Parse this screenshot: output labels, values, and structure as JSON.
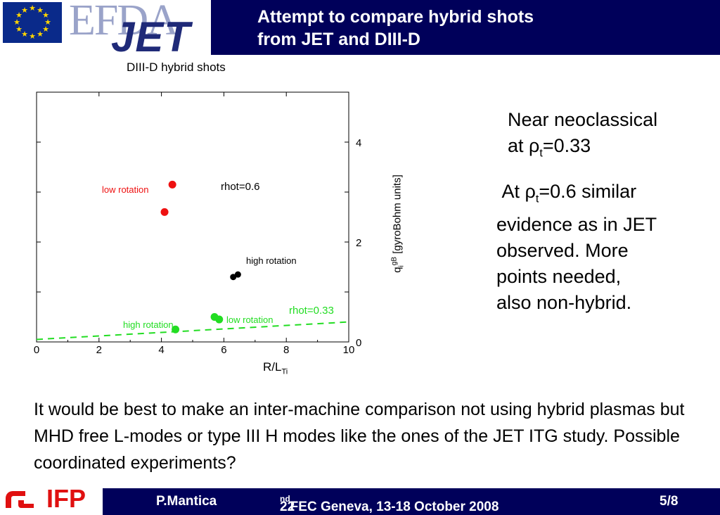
{
  "header": {
    "logo_efda": "EFDA",
    "logo_jet": "JET",
    "title_line1": "Attempt to compare hybrid shots",
    "title_line2": "from JET and DIII-D",
    "colors": {
      "header_bg": "#00005a",
      "flag_bg": "#0a2a8a",
      "star": "#ffd500"
    }
  },
  "chart": {
    "title": "DIII-D  hybrid shots",
    "ylabel_main": "q",
    "ylabel_sup": "gB",
    "ylabel_sub": "i",
    "ylabel_units": " [gyroBohm units]",
    "xlabel_main": "R/L",
    "xlabel_sub": "Ti",
    "xticks": [
      "0",
      "2",
      "4",
      "6",
      "8",
      "10"
    ],
    "yticks": [
      "0",
      "2",
      "4"
    ],
    "annotations": {
      "low_rotation_red": "low rotation",
      "rhot_06": "rhot=0.6",
      "high_rotation_black": "high rotation",
      "rhot_033": "rhot=0.33",
      "high_rotation_green": "high rotation",
      "low_rotation_green": "low rotation"
    }
  },
  "chart_data": {
    "type": "scatter",
    "title": "DIII-D  hybrid shots",
    "xlabel": "R/LTi",
    "ylabel": "qi gB [gyroBohm units]",
    "xlim": [
      0,
      10
    ],
    "ylim": [
      0,
      5
    ],
    "grid": false,
    "series": [
      {
        "group": "rhot=0.6 low rotation",
        "color": "#ee1111",
        "points": [
          [
            4.35,
            3.15
          ],
          [
            4.1,
            2.6
          ]
        ]
      },
      {
        "group": "rhot=0.6 high rotation",
        "color": "#000000",
        "points": [
          [
            6.3,
            1.3
          ],
          [
            6.45,
            1.35
          ]
        ]
      },
      {
        "group": "rhot=0.33 low rotation",
        "color": "#22dd22",
        "points": [
          [
            5.7,
            0.5
          ],
          [
            5.85,
            0.45
          ]
        ]
      },
      {
        "group": "rhot=0.33 high rotation",
        "color": "#22dd22",
        "points": [
          [
            4.45,
            0.25
          ]
        ]
      }
    ],
    "dashed_line": {
      "color": "#22dd22",
      "points": [
        [
          0,
          0.05
        ],
        [
          10,
          0.4
        ]
      ]
    }
  },
  "side": {
    "text1_line1": "Near neoclassical",
    "text1_prefix": "at ",
    "rho": "ρ",
    "rho_sub": "t",
    "text1_value": "=0.33",
    "text2_prefix": "At ",
    "text2_value": "=0.6 similar",
    "text2_line2": "evidence as in JET",
    "text2_line3": "observed. More",
    "text2_line4": "points needed,",
    "text2_line5": "also non-hybrid."
  },
  "bottom": {
    "text": "It would be best to make an inter-machine comparison not using hybrid plasmas but MHD free L-modes or type III H modes like the ones of the JET ITG study. Possible coordinated experiments?"
  },
  "footer": {
    "logo_text": "IFP",
    "author": "P.Mantica",
    "conf_num": "22",
    "conf_sup": "nd",
    "conf_rest": " FEC Geneva, 13-18 October 2008",
    "page": "5/8",
    "colors": {
      "logo_red": "#e01010"
    }
  }
}
